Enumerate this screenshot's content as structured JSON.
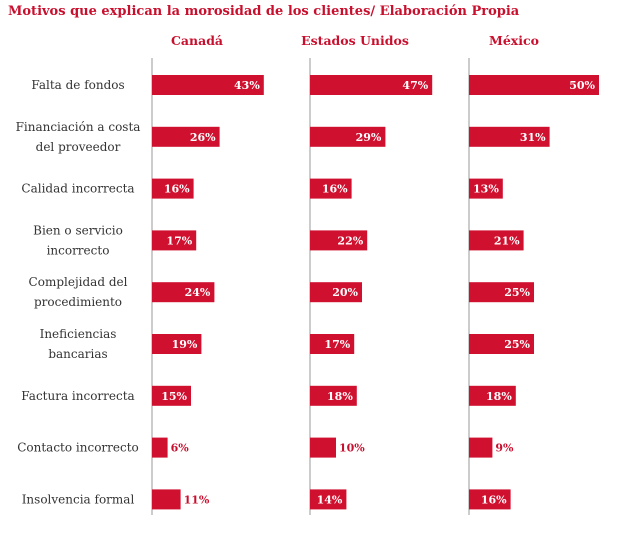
{
  "chart_data": {
    "type": "bar",
    "title": "Motivos que explican la morosidad de los clientes/ Elaboración Propia",
    "categories": [
      [
        "Falta de fondos"
      ],
      [
        "Financiación a costa",
        "del proveedor"
      ],
      [
        "Calidad incorrecta"
      ],
      [
        "Bien o servicio",
        "incorrecto"
      ],
      [
        "Complejidad del",
        "procedimiento"
      ],
      [
        "Ineficiencias",
        "bancarias"
      ],
      [
        "Factura incorrecta"
      ],
      [
        "Contacto incorrecto"
      ],
      [
        "Insolvencia formal"
      ]
    ],
    "series": [
      {
        "name": "Canadá",
        "values": [
          43,
          26,
          16,
          17,
          24,
          19,
          15,
          6,
          11
        ]
      },
      {
        "name": "Estados Unidos",
        "values": [
          47,
          29,
          16,
          22,
          20,
          17,
          18,
          10,
          14
        ]
      },
      {
        "name": "México",
        "values": [
          50,
          31,
          13,
          21,
          25,
          25,
          18,
          9,
          16
        ]
      }
    ],
    "unit": "%",
    "xlim": [
      0,
      50
    ],
    "colors": {
      "bar": "#d0102f",
      "title": "#c8102e",
      "label": "#333333",
      "axis": "#999999"
    },
    "grid": false
  }
}
